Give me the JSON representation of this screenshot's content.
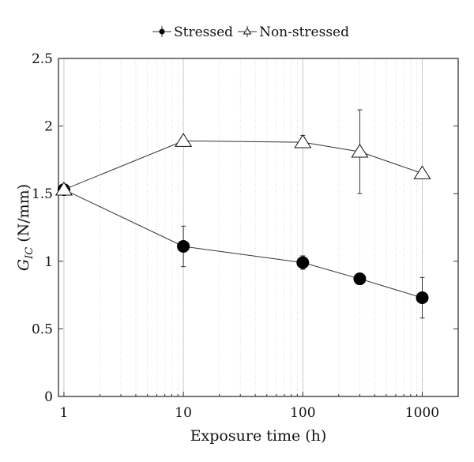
{
  "chart_data": {
    "type": "line",
    "title": "",
    "xlabel": "Exposure time (h)",
    "ylabel": {
      "main": "G",
      "subscript": "IC",
      "unit": "(N/mm)"
    },
    "xscale": "log",
    "xlim": [
      0.9,
      2000
    ],
    "ylim": [
      0,
      2.5
    ],
    "xticks": [
      1,
      10,
      100,
      1000
    ],
    "xtick_labels": [
      "1",
      "10",
      "100",
      "1000"
    ],
    "yticks": [
      0,
      0.5,
      1,
      1.5,
      2,
      2.5
    ],
    "ytick_labels": [
      "0",
      "0.5",
      "1",
      "1.5",
      "2",
      "2.5"
    ],
    "grid": "vertical major and minor (dotted minor)",
    "legend_position": "top-center, outside",
    "series": [
      {
        "name": "Stressed",
        "marker": "filled-circle",
        "color": "#000000",
        "x": [
          1,
          10,
          100,
          300,
          1000
        ],
        "y": [
          1.53,
          1.11,
          0.99,
          0.87,
          0.73
        ],
        "err_low": [
          1.5,
          0.96,
          0.94,
          0.86,
          0.58
        ],
        "err_high": [
          1.55,
          1.26,
          1.04,
          0.88,
          0.88
        ]
      },
      {
        "name": "Non-stressed",
        "marker": "open-triangle",
        "color": "#000000",
        "x": [
          1,
          10,
          100,
          300,
          1000
        ],
        "y": [
          1.53,
          1.89,
          1.88,
          1.81,
          1.65
        ],
        "err_low": [
          1.51,
          1.88,
          1.84,
          1.5,
          1.64
        ],
        "err_high": [
          1.55,
          1.91,
          1.93,
          2.12,
          1.66
        ]
      }
    ]
  }
}
